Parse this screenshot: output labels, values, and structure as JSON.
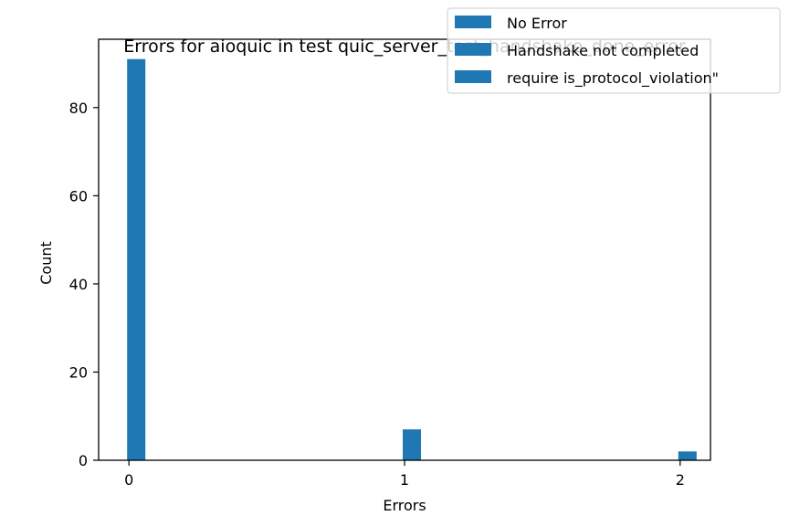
{
  "chart_data": {
    "type": "bar",
    "title": "Errors for aioquic in test quic_server_test_handshake_done_error",
    "xlabel": "Errors",
    "ylabel": "Count",
    "x": [
      0,
      1,
      2
    ],
    "values": [
      91,
      7,
      2
    ],
    "xticks": [
      "0",
      "1",
      "2"
    ],
    "yticks": [
      "0",
      "20",
      "40",
      "60",
      "80"
    ],
    "xlim": [
      -0.11,
      2.11
    ],
    "ylim": [
      0,
      95.5
    ],
    "bar_color": "#1f77b4",
    "legend": {
      "placement": "top-right",
      "entries": [
        "No Error",
        "Handshake not completed",
        "require is_protocol_violation\""
      ]
    },
    "grid": false
  }
}
